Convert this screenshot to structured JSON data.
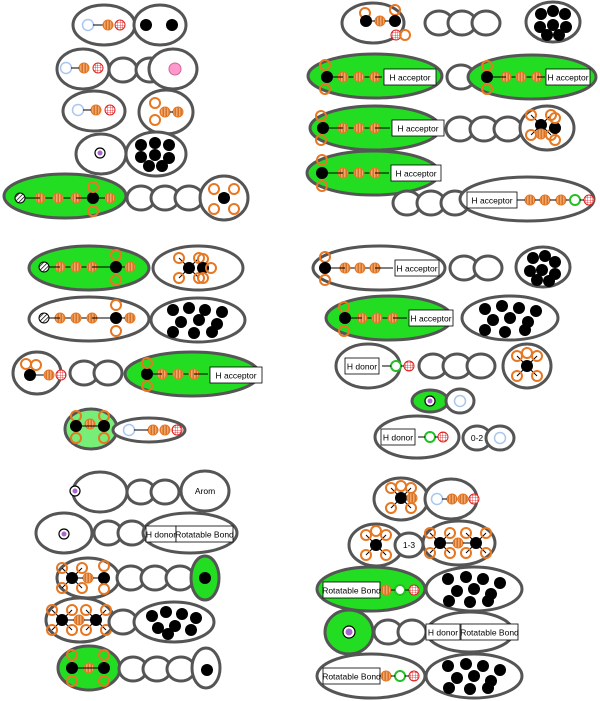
{
  "colors": {
    "ring_stroke": "#555555",
    "highlight_fill": "#22dd22",
    "highlight_light_fill": "#77ee77",
    "orange": "#e87722",
    "red": "#e02020",
    "green": "#22c022",
    "pink": "#ff99cc",
    "light_blue": "#a9c6f0",
    "purple": "#aa66cc",
    "black": "#000000"
  },
  "labels": {
    "h_acceptor": "H acceptor",
    "h_donor": "H donor",
    "rotatable_bond": "Rotatable Bond",
    "arom": "Arom",
    "range_0_2": "0-2",
    "range_1_3": "1-3"
  },
  "groups": [
    {
      "id": "left-top",
      "label": ""
    },
    {
      "id": "left-middle",
      "label": ""
    },
    {
      "id": "left-bottom",
      "label": ""
    },
    {
      "id": "right-top",
      "label": ""
    },
    {
      "id": "right-middle",
      "label": ""
    },
    {
      "id": "right-bottom",
      "label": ""
    }
  ]
}
